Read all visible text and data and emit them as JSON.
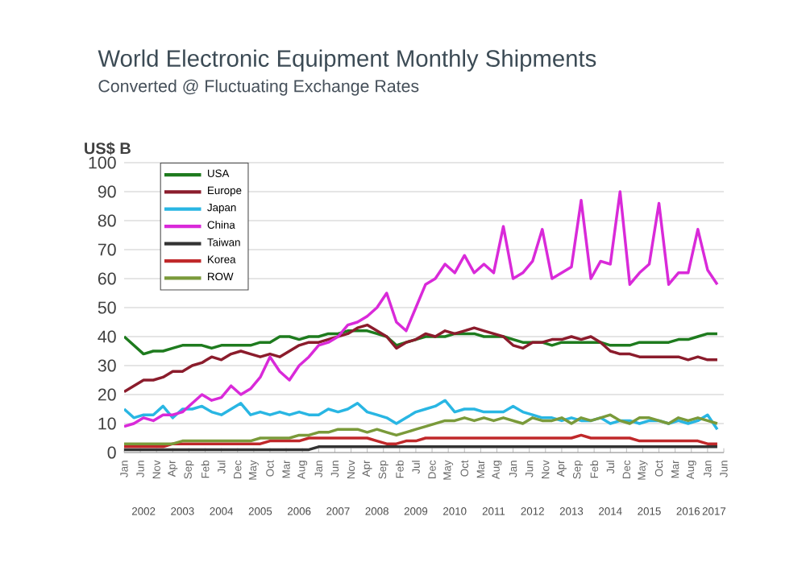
{
  "chart_data": {
    "type": "line",
    "title": "World Electronic Equipment  Monthly Shipments",
    "subtitle": "Converted @ Fluctuating Exchange Rates",
    "ylabel": "US$ B",
    "x": [
      "2002-01",
      "2002-04",
      "2002-07",
      "2002-10",
      "2003-01",
      "2003-04",
      "2003-07",
      "2003-10",
      "2004-01",
      "2004-04",
      "2004-07",
      "2004-10",
      "2005-01",
      "2005-04",
      "2005-07",
      "2005-10",
      "2006-01",
      "2006-04",
      "2006-07",
      "2006-10",
      "2007-01",
      "2007-04",
      "2007-07",
      "2007-10",
      "2008-01",
      "2008-04",
      "2008-07",
      "2008-10",
      "2009-01",
      "2009-04",
      "2009-07",
      "2009-10",
      "2010-01",
      "2010-04",
      "2010-07",
      "2010-10",
      "2011-01",
      "2011-04",
      "2011-07",
      "2011-10",
      "2012-01",
      "2012-04",
      "2012-07",
      "2012-10",
      "2013-01",
      "2013-04",
      "2013-07",
      "2013-10",
      "2014-01",
      "2014-04",
      "2014-07",
      "2014-10",
      "2015-01",
      "2015-04",
      "2015-07",
      "2015-10",
      "2016-01",
      "2016-04",
      "2016-07",
      "2016-10",
      "2017-01",
      "2017-04"
    ],
    "series": [
      {
        "name": "USA",
        "color": "#1e7b1e",
        "values": [
          40,
          37,
          34,
          35,
          35,
          36,
          37,
          37,
          37,
          36,
          37,
          37,
          37,
          37,
          38,
          38,
          40,
          40,
          39,
          40,
          40,
          41,
          41,
          42,
          42,
          42,
          41,
          40,
          37,
          38,
          39,
          40,
          40,
          40,
          41,
          41,
          41,
          40,
          40,
          40,
          39,
          38,
          38,
          38,
          37,
          38,
          38,
          38,
          38,
          38,
          37,
          37,
          37,
          38,
          38,
          38,
          38,
          39,
          39,
          40,
          41,
          41
        ]
      },
      {
        "name": "Europe",
        "color": "#8b1c2c",
        "values": [
          21,
          23,
          25,
          25,
          26,
          28,
          28,
          30,
          31,
          33,
          32,
          34,
          35,
          34,
          33,
          34,
          33,
          35,
          37,
          38,
          38,
          39,
          40,
          41,
          43,
          44,
          42,
          40,
          36,
          38,
          39,
          41,
          40,
          42,
          41,
          42,
          43,
          42,
          41,
          40,
          37,
          36,
          38,
          38,
          39,
          39,
          40,
          39,
          40,
          38,
          35,
          34,
          34,
          33,
          33,
          33,
          33,
          33,
          32,
          33,
          32,
          32
        ]
      },
      {
        "name": "Japan",
        "color": "#29b6e3",
        "values": [
          15,
          12,
          13,
          13,
          16,
          12,
          15,
          15,
          16,
          14,
          13,
          15,
          17,
          13,
          14,
          13,
          14,
          13,
          14,
          13,
          13,
          15,
          14,
          15,
          17,
          14,
          13,
          12,
          10,
          12,
          14,
          15,
          16,
          18,
          14,
          15,
          15,
          14,
          14,
          14,
          16,
          14,
          13,
          12,
          12,
          11,
          12,
          11,
          11,
          12,
          10,
          11,
          11,
          10,
          11,
          11,
          10,
          11,
          10,
          11,
          13,
          8
        ]
      },
      {
        "name": "China",
        "color": "#d92ad9",
        "values": [
          9,
          10,
          12,
          11,
          13,
          13,
          14,
          17,
          20,
          18,
          19,
          23,
          20,
          22,
          26,
          33,
          28,
          25,
          30,
          33,
          37,
          38,
          40,
          44,
          45,
          47,
          50,
          55,
          45,
          42,
          50,
          58,
          60,
          65,
          62,
          68,
          62,
          65,
          62,
          78,
          60,
          62,
          66,
          77,
          60,
          62,
          64,
          87,
          60,
          66,
          65,
          90,
          58,
          62,
          65,
          86,
          58,
          62,
          62,
          77,
          63,
          58
        ]
      },
      {
        "name": "Taiwan",
        "color": "#333333",
        "values": [
          1,
          1,
          1,
          1,
          1,
          1,
          1,
          1,
          1,
          1,
          1,
          1,
          1,
          1,
          1,
          1,
          1,
          1,
          1,
          1,
          2,
          2,
          2,
          2,
          2,
          2,
          2,
          2,
          2,
          2,
          2,
          2,
          2,
          2,
          2,
          2,
          2,
          2,
          2,
          2,
          2,
          2,
          2,
          2,
          2,
          2,
          2,
          2,
          2,
          2,
          2,
          2,
          2,
          2,
          2,
          2,
          2,
          2,
          2,
          2,
          2,
          2
        ]
      },
      {
        "name": "Korea",
        "color": "#c0282a",
        "values": [
          2,
          2,
          2,
          2,
          2,
          3,
          3,
          3,
          3,
          3,
          3,
          3,
          3,
          3,
          3,
          4,
          4,
          4,
          4,
          5,
          5,
          5,
          5,
          5,
          5,
          5,
          4,
          3,
          3,
          4,
          4,
          5,
          5,
          5,
          5,
          5,
          5,
          5,
          5,
          5,
          5,
          5,
          5,
          5,
          5,
          5,
          5,
          6,
          5,
          5,
          5,
          5,
          5,
          4,
          4,
          4,
          4,
          4,
          4,
          4,
          3,
          3
        ]
      },
      {
        "name": "ROW",
        "color": "#7a9a3a",
        "values": [
          3,
          3,
          3,
          3,
          3,
          3,
          4,
          4,
          4,
          4,
          4,
          4,
          4,
          4,
          5,
          5,
          5,
          5,
          6,
          6,
          7,
          7,
          8,
          8,
          8,
          7,
          8,
          7,
          6,
          7,
          8,
          9,
          10,
          11,
          11,
          12,
          11,
          12,
          11,
          12,
          11,
          10,
          12,
          11,
          11,
          12,
          10,
          12,
          11,
          12,
          13,
          11,
          10,
          12,
          12,
          11,
          10,
          12,
          11,
          12,
          11,
          10
        ]
      }
    ],
    "xlim": [
      "2002-01",
      "2017-06"
    ],
    "xticks": [
      {
        "value": "2002-01",
        "label": "Jan"
      },
      {
        "value": "2002-06",
        "label": "Jun"
      },
      {
        "value": "2002-11",
        "label": "Nov"
      },
      {
        "value": "2003-04",
        "label": "Apr"
      },
      {
        "value": "2003-09",
        "label": "Sep"
      },
      {
        "value": "2004-02",
        "label": "Feb"
      },
      {
        "value": "2004-07",
        "label": "Jul"
      },
      {
        "value": "2004-12",
        "label": "Dec"
      },
      {
        "value": "2005-05",
        "label": "May"
      },
      {
        "value": "2005-10",
        "label": "Oct"
      },
      {
        "value": "2006-03",
        "label": "Mar"
      },
      {
        "value": "2006-08",
        "label": "Aug"
      },
      {
        "value": "2007-01",
        "label": "Jan"
      },
      {
        "value": "2007-06",
        "label": "Jun"
      },
      {
        "value": "2007-11",
        "label": "Nov"
      },
      {
        "value": "2008-04",
        "label": "Apr"
      },
      {
        "value": "2008-09",
        "label": "Sep"
      },
      {
        "value": "2009-02",
        "label": "Feb"
      },
      {
        "value": "2009-07",
        "label": "Jul"
      },
      {
        "value": "2009-12",
        "label": "Dec"
      },
      {
        "value": "2010-05",
        "label": "May"
      },
      {
        "value": "2010-10",
        "label": "Oct"
      },
      {
        "value": "2011-03",
        "label": "Mar"
      },
      {
        "value": "2011-08",
        "label": "Aug"
      },
      {
        "value": "2012-01",
        "label": "Jan"
      },
      {
        "value": "2012-06",
        "label": "Jun"
      },
      {
        "value": "2012-11",
        "label": "Nov"
      },
      {
        "value": "2013-04",
        "label": "Apr"
      },
      {
        "value": "2013-09",
        "label": "Sep"
      },
      {
        "value": "2014-02",
        "label": "Feb"
      },
      {
        "value": "2014-07",
        "label": "Jul"
      },
      {
        "value": "2014-12",
        "label": "Dec"
      },
      {
        "value": "2015-05",
        "label": "May"
      },
      {
        "value": "2015-10",
        "label": "Oct"
      },
      {
        "value": "2016-03",
        "label": "Mar"
      },
      {
        "value": "2016-08",
        "label": "Aug"
      },
      {
        "value": "2017-01",
        "label": "Jan"
      },
      {
        "value": "2017-06",
        "label": "Jun"
      }
    ],
    "x2ticks": [
      {
        "value": "2002-07",
        "label": "2002"
      },
      {
        "value": "2003-07",
        "label": "2003"
      },
      {
        "value": "2004-07",
        "label": "2004"
      },
      {
        "value": "2005-07",
        "label": "2005"
      },
      {
        "value": "2006-07",
        "label": "2006"
      },
      {
        "value": "2007-07",
        "label": "2007"
      },
      {
        "value": "2008-07",
        "label": "2008"
      },
      {
        "value": "2009-07",
        "label": "2009"
      },
      {
        "value": "2010-07",
        "label": "2010"
      },
      {
        "value": "2011-07",
        "label": "2011"
      },
      {
        "value": "2012-07",
        "label": "2012"
      },
      {
        "value": "2013-07",
        "label": "2013"
      },
      {
        "value": "2014-07",
        "label": "2014"
      },
      {
        "value": "2015-07",
        "label": "2015"
      },
      {
        "value": "2016-07",
        "label": "2016"
      },
      {
        "value": "2017-03",
        "label": "2017"
      }
    ],
    "x2lim": [
      "2002-01",
      "2017-06"
    ],
    "ylim": [
      0,
      100
    ],
    "yticks": [
      0,
      10,
      20,
      30,
      40,
      50,
      60,
      70,
      80,
      90,
      100
    ],
    "grid": "y",
    "legend": "top left",
    "marker": "none",
    "line_style": "solid"
  }
}
